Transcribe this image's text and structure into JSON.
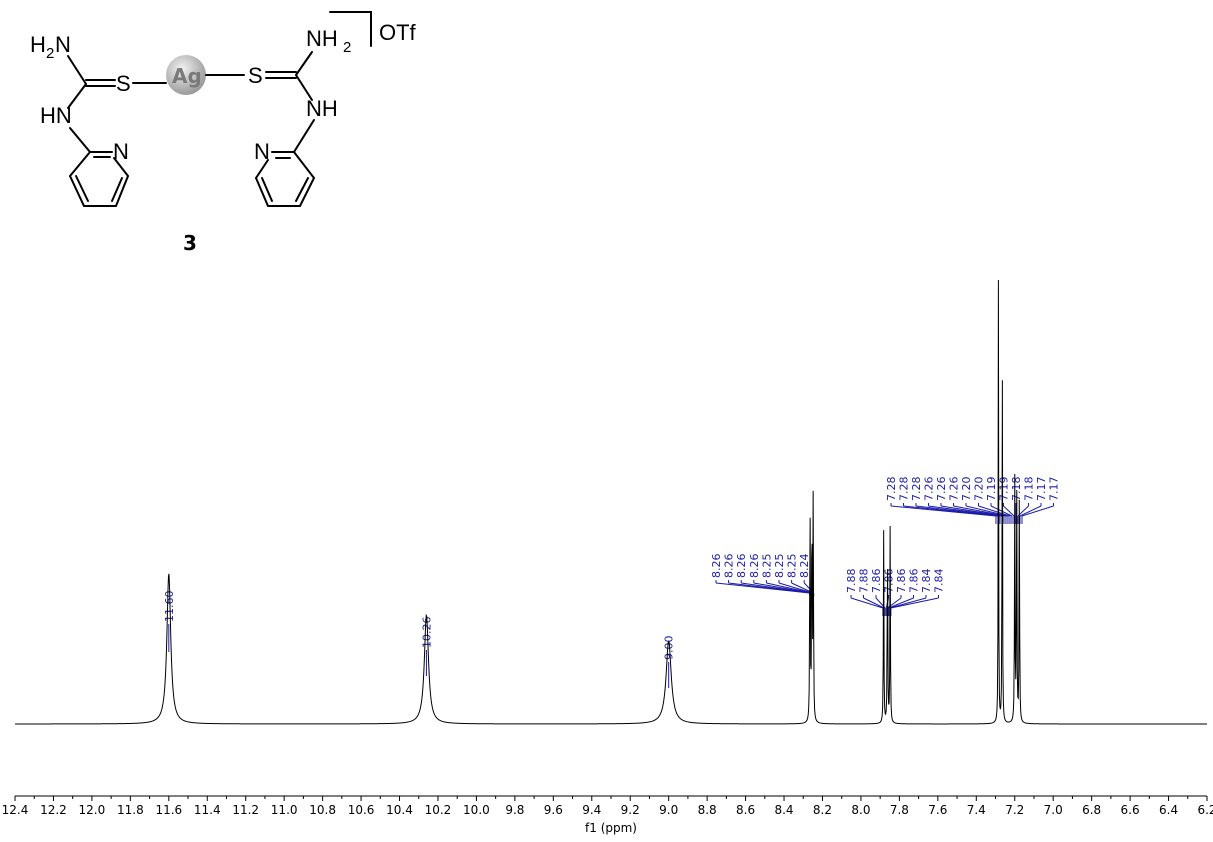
{
  "structure": {
    "compound_number": "3",
    "counterion": "OTf",
    "metal": "Ag",
    "labels": {
      "left_amine": "H",
      "left_amine_sub": "2",
      "left_amine_n": "N",
      "right_amine": "NH",
      "right_amine_sub": "2",
      "sulfur": "S",
      "hn": "HN",
      "nh": "NH",
      "pyridine_n": "N"
    }
  },
  "chart_data": {
    "type": "line",
    "xlabel": "f1 (ppm)",
    "xlim": [
      12.4,
      6.2
    ],
    "x_axis_reversed": true,
    "tick_values": [
      12.4,
      12.2,
      12.0,
      11.8,
      11.6,
      11.4,
      11.2,
      11.0,
      10.8,
      10.6,
      10.4,
      10.2,
      10.0,
      9.8,
      9.6,
      9.4,
      9.2,
      9.0,
      8.8,
      8.6,
      8.4,
      8.2,
      8.0,
      7.8,
      7.6,
      7.4,
      7.2,
      7.0,
      6.8,
      6.6,
      6.4,
      6.2
    ],
    "tick_labels": [
      "12.4",
      "12.2",
      "12.0",
      "11.8",
      "11.6",
      "11.4",
      "11.2",
      "11.0",
      "10.8",
      "10.6",
      "10.4",
      "10.2",
      "10.0",
      "9.8",
      "9.6",
      "9.4",
      "9.2",
      "9.0",
      "8.8",
      "8.6",
      "8.4",
      "8.2",
      "8.0",
      "7.8",
      "7.6",
      "7.4",
      "7.2",
      "7.0",
      "6.8",
      "6.6",
      "6.4",
      "6.2"
    ],
    "series": [
      {
        "peaks": [
          {
            "ppm": 11.6,
            "height": 0.29,
            "width": 0.012
          },
          {
            "ppm": 10.26,
            "height": 0.21,
            "width": 0.013
          },
          {
            "ppm": 9.0,
            "height": 0.16,
            "width": 0.016
          },
          {
            "ppm": 8.265,
            "height": 0.52,
            "width": 0.0015
          },
          {
            "ppm": 8.255,
            "height": 0.52,
            "width": 0.0015
          },
          {
            "ppm": 8.248,
            "height": 0.48,
            "width": 0.0015
          },
          {
            "ppm": 7.882,
            "height": 0.38,
            "width": 0.0015
          },
          {
            "ppm": 7.862,
            "height": 0.4,
            "width": 0.0015
          },
          {
            "ppm": 7.848,
            "height": 0.38,
            "width": 0.0015
          },
          {
            "ppm": 7.285,
            "height": 0.85,
            "width": 0.0013
          },
          {
            "ppm": 7.265,
            "height": 0.83,
            "width": 0.0013
          },
          {
            "ppm": 7.2,
            "height": 0.48,
            "width": 0.0015
          },
          {
            "ppm": 7.19,
            "height": 0.5,
            "width": 0.0015
          },
          {
            "ppm": 7.176,
            "height": 0.47,
            "width": 0.0015
          }
        ]
      }
    ],
    "peak_labels": [
      {
        "group": "11.60",
        "labels": [
          "11.60"
        ]
      },
      {
        "group": "10.26",
        "labels": [
          "10.26"
        ]
      },
      {
        "group": "9.00",
        "labels": [
          "9.00"
        ]
      },
      {
        "group": "8.2x",
        "labels": [
          "8.26",
          "8.26",
          "8.26",
          "8.26",
          "8.25",
          "8.25",
          "8.25",
          "8.24"
        ]
      },
      {
        "group": "7.8x",
        "labels": [
          "7.88",
          "7.88",
          "7.86",
          "7.86",
          "7.86",
          "7.86",
          "7.84",
          "7.84"
        ]
      },
      {
        "group": "7.2x",
        "labels": [
          "7.28",
          "7.28",
          "7.28",
          "7.26",
          "7.26",
          "7.26",
          "7.20",
          "7.20",
          "7.19",
          "7.19",
          "7.18",
          "7.18",
          "7.17",
          "7.17"
        ]
      }
    ]
  }
}
